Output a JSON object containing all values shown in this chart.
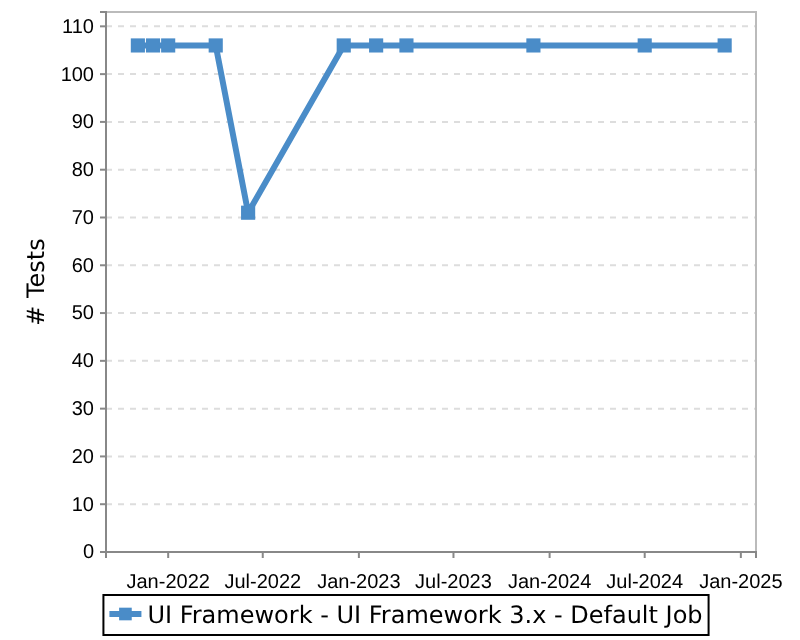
{
  "chart_data": {
    "type": "line",
    "ylabel": "# Tests",
    "x": [
      "2021-11-04",
      "2021-12-03",
      "2022-01-01",
      "2022-04-02",
      "2022-06-03",
      "2022-12-03",
      "2023-02-03",
      "2023-04-02",
      "2023-12-01",
      "2024-07-01",
      "2024-12-01"
    ],
    "series": [
      {
        "name": "UI Framework - UI Framework 3.x - Default Job",
        "color": "#4a8cc8",
        "values": [
          106,
          106,
          106,
          106,
          71,
          106,
          106,
          106,
          106,
          106,
          106
        ]
      }
    ],
    "xlim": [
      "2021-09-04",
      "2025-01-30"
    ],
    "xticks": [
      {
        "value": "2022-01-01",
        "label": "Jan-2022"
      },
      {
        "value": "2022-07-01",
        "label": "Jul-2022"
      },
      {
        "value": "2023-01-01",
        "label": "Jan-2023"
      },
      {
        "value": "2023-07-01",
        "label": "Jul-2023"
      },
      {
        "value": "2024-01-01",
        "label": "Jan-2024"
      },
      {
        "value": "2024-07-01",
        "label": "Jul-2024"
      },
      {
        "value": "2025-01-01",
        "label": "Jan-2025"
      }
    ],
    "ylim": [
      0,
      113
    ],
    "yticks": [
      0,
      10,
      20,
      30,
      40,
      50,
      60,
      70,
      80,
      90,
      100,
      110
    ],
    "grid": "y",
    "legend": "bottom",
    "marker": "square",
    "line_style": "solid"
  }
}
